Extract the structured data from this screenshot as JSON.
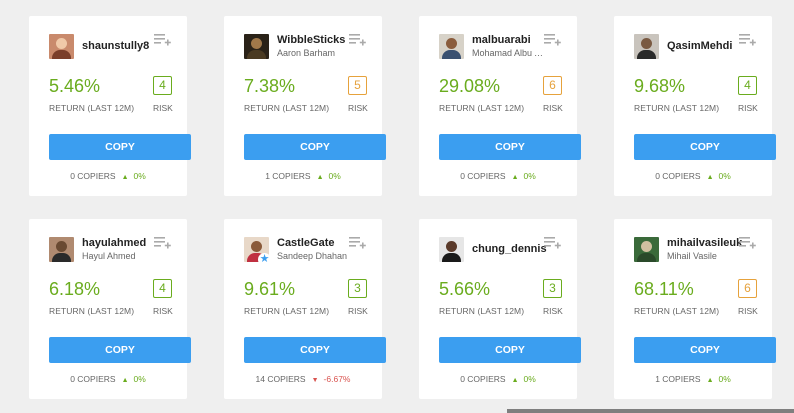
{
  "labels": {
    "return_label": "RETURN (LAST 12M)",
    "risk_label": "RISK",
    "copy_label": "COPY",
    "copiers_word": "COPIERS"
  },
  "colors": {
    "return_green": "#6aac1e",
    "copy_blue": "#3b9ef0",
    "risk_low": "#6aac1e",
    "risk_medium": "#e6a23c",
    "negative": "#d9534f"
  },
  "traders": [
    {
      "username": "shaunstully8",
      "fullname": "",
      "return": "5.46%",
      "risk": "4",
      "copiers": "0",
      "change": "0%",
      "trend": "up",
      "icon": "watchlist-add-icon"
    },
    {
      "username": "WibbleSticks",
      "fullname": "Aaron Barham",
      "return": "7.38%",
      "risk": "5",
      "copiers": "1",
      "change": "0%",
      "trend": "up",
      "icon": "watchlist-add-icon"
    },
    {
      "username": "malbuarabi",
      "fullname": "Mohamad Albu Ar...",
      "return": "29.08%",
      "risk": "6",
      "copiers": "0",
      "change": "0%",
      "trend": "up",
      "icon": "watchlist-add-icon"
    },
    {
      "username": "QasimMehdi",
      "fullname": "",
      "return": "9.68%",
      "risk": "4",
      "copiers": "0",
      "change": "0%",
      "trend": "up",
      "icon": "watchlist-add-icon"
    },
    {
      "username": "hayulahmed",
      "fullname": "Hayul Ahmed",
      "return": "6.18%",
      "risk": "4",
      "copiers": "0",
      "change": "0%",
      "trend": "up",
      "icon": "watchlist-add-icon"
    },
    {
      "username": "CastleGate",
      "fullname": "Sandeep Dhahan",
      "return": "9.61%",
      "risk": "3",
      "copiers": "14",
      "change": "-6.67%",
      "trend": "down",
      "icon": "watchlist-add-icon"
    },
    {
      "username": "chung_dennis",
      "fullname": "",
      "return": "5.66%",
      "risk": "3",
      "copiers": "0",
      "change": "0%",
      "trend": "up",
      "icon": "watchlist-add-icon"
    },
    {
      "username": "mihailvasileuk",
      "fullname": "Mihail Vasile",
      "return": "68.11%",
      "risk": "6",
      "copiers": "1",
      "change": "0%",
      "trend": "up",
      "icon": "watchlist-add-icon"
    }
  ]
}
